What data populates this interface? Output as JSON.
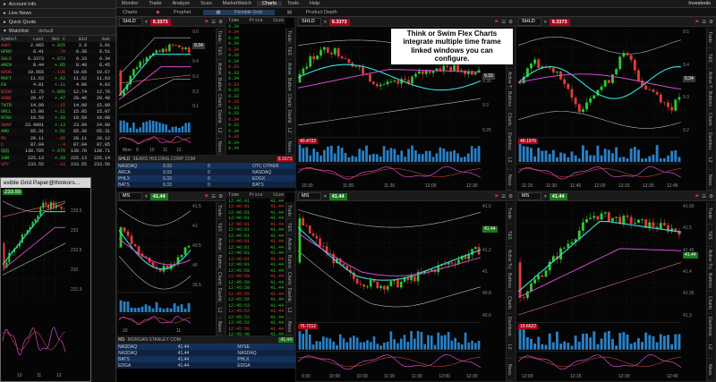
{
  "app": {
    "brand": "Investools"
  },
  "menu": [
    "Monitor",
    "Trade",
    "Analyze",
    "Scan",
    "MarketWatch",
    "Charts",
    "Tools",
    "Help"
  ],
  "subtabs": [
    "Charts",
    "Prophet",
    "Flexible Grid",
    "Product Depth"
  ],
  "left": {
    "sections": [
      "Account Info",
      "Live News",
      "Quick Quote"
    ],
    "watchlist_title": "Watchlist",
    "watchlist_name": "default",
    "columns": [
      "Symbol",
      "Last",
      "Net C",
      "Bid",
      "Ask"
    ],
    "rows": [
      {
        "sym": "AAPL",
        "last": "2.965",
        "chg": "+.025",
        "bid": "2.9",
        "ask": "3.01",
        "color": "#e04040"
      },
      {
        "sym": "GPRO",
        "last": "8.41",
        "chg": "-.79",
        "bid": "8.38",
        "ask": "8.51",
        "color": "#40d040"
      },
      {
        "sym": "SHLD",
        "last": "9.3373",
        "chg": "+.073",
        "bid": "9.33",
        "ask": "9.34",
        "color": "#40d040"
      },
      {
        "sym": "AMZN",
        "last": "8.44",
        "chg": "+.05",
        "bid": "8.40",
        "ask": "8.45",
        "color": "#40d040"
      },
      {
        "sym": "GOOG",
        "last": "10.665",
        "chg": "-.135",
        "bid": "10.66",
        "ask": "10.67",
        "color": "#e04040"
      },
      {
        "sym": "MSFT",
        "last": "11.63",
        "chg": "+.02",
        "bid": "11.62",
        "ask": "11.63",
        "color": "#40d040"
      },
      {
        "sym": "FB",
        "last": "4.01",
        "chg": "+.11",
        "bid": "4.00",
        "ask": "4.03",
        "color": "#40d040"
      },
      {
        "sym": "BIDU",
        "last": "12.75",
        "chg": "+.095",
        "bid": "12.74",
        "ask": "12.76",
        "color": "#e04040"
      },
      {
        "sym": "ADBE",
        "last": "20.47",
        "chg": "+.47",
        "bid": "20.46",
        "ask": "20.48",
        "color": "#e04040"
      },
      {
        "sym": "TWTR",
        "last": "14.99",
        "chg": "-.15",
        "bid": "14.99",
        "ask": "15.00",
        "color": "#40d040"
      },
      {
        "sym": "ORCL",
        "last": "15.06",
        "chg": "+.11",
        "bid": "15.05",
        "ask": "15.07",
        "color": "#40d040"
      },
      {
        "sym": "NTNX",
        "last": "19.59",
        "chg": "+.28",
        "bid": "19.59",
        "ask": "19.60",
        "color": "#40d040"
      },
      {
        "sym": "SNAP",
        "last": "23.9991",
        "chg": "+.13",
        "bid": "23.99",
        "ask": "24.00",
        "color": "#e04040"
      },
      {
        "sym": "AMD",
        "last": "65.31",
        "chg": "+.51",
        "bid": "65.30",
        "ask": "65.31",
        "color": "#40d040"
      },
      {
        "sym": "MS",
        "last": "28.11",
        "chg": "-.06",
        "bid": "28.11",
        "ask": "28.12",
        "color": "#e04040"
      },
      {
        "sym": "C",
        "last": "87.04",
        "chg": "-.4",
        "bid": "87.04",
        "ask": "87.05",
        "color": "#e04040"
      },
      {
        "sym": "QQQ",
        "last": "130.705",
        "chg": "+.075",
        "bid": "130.70",
        "ask": "130.71",
        "color": "#40d040"
      },
      {
        "sym": "IWM",
        "last": "225.13",
        "chg": "+.29",
        "bid": "225.13",
        "ask": "225.14",
        "color": "#40d040"
      },
      {
        "sym": "SPY",
        "last": "233.55",
        "chg": "-.33",
        "bid": "233.55",
        "ask": "233.56",
        "color": "#e04040"
      }
    ]
  },
  "annotation": "Think or Swim Flex Charts integrate multiple time frame linked windows you can configure.",
  "float_window_title": "exible Grid Paper@thinkors...",
  "float_window_price": "233.55",
  "float_window_axis": [
    "233.5",
    "233",
    "232.5",
    "232",
    "231.5"
  ],
  "float_window_x": [
    "10",
    "11",
    "12"
  ],
  "shld": {
    "symbol": "SHLD",
    "price": "9.3373",
    "depth_title": "SEARS HOLDING CORP COM",
    "depth_rows": [
      [
        "NASDAQ",
        "9.33",
        "0",
        "OTC OTHER"
      ],
      [
        "ARCA",
        "9.33",
        "0",
        "NASDAQ"
      ],
      [
        "PHLX",
        "9.33",
        "0",
        "EDGX"
      ],
      [
        "BATS",
        "9.33",
        "0",
        "BATS"
      ]
    ],
    "tas_cols": [
      "Time",
      "Price",
      "Size"
    ],
    "tas_rows": [
      "9.34",
      "9.34",
      "9.34",
      "9.34",
      "9.34",
      "9.33",
      "9.34",
      "9.33",
      "9.33",
      "9.34",
      "9.33",
      "9.33",
      "9.33",
      "9.33",
      "9.33",
      "9.33",
      "9.34",
      "9.33",
      "9.34",
      "9.33",
      "9.34",
      "9.34"
    ],
    "axis_a": [
      "9.6",
      "9.5",
      "9.4",
      "9.3",
      "9.2",
      "9.1"
    ],
    "axis_c": [
      "9.45",
      "9.4",
      "9.35",
      "9.3",
      "9.25"
    ],
    "axis_d": [
      "9.5",
      "9.4",
      "9.3",
      "9.2"
    ],
    "x_a": [
      "Mon",
      "9",
      "10",
      "11",
      "12"
    ],
    "x_c": [
      "10:30",
      "11:00",
      "11:30",
      "12:00",
      "12:30"
    ],
    "x_d": [
      "11:15",
      "11:30",
      "11:45",
      "12:00",
      "12:15",
      "12:30",
      "12:45"
    ],
    "badge_a": "9.34",
    "badge_c": "9.33",
    "badge_d": "9.34",
    "vol_c": "40.4722",
    "vol_d": "48.1976"
  },
  "ms": {
    "symbol": "MS",
    "price": "41.44",
    "depth_title": "MORGAN STANLEY COM",
    "depth_rows": [
      [
        "NASDAQ",
        "41.44",
        "NYSE"
      ],
      [
        "NASDAQ",
        "41.44",
        "NASDAQ"
      ],
      [
        "BATS",
        "41.44",
        "PHLX"
      ],
      [
        "EDGA",
        "41.44",
        "EDGA"
      ]
    ],
    "tas_rows": [
      "12:46:01",
      "12:46:01",
      "12:46:01",
      "12:46:01",
      "12:46:01",
      "12:46:01",
      "12:46:01",
      "12:46:01",
      "12:46:01",
      "12:46:01",
      "12:46:01",
      "12:46:01",
      "12:45:59",
      "12:45:59",
      "12:45:59",
      "12:45:58",
      "12:45:55",
      "12:45:55",
      "12:45:53",
      "12:45:52",
      "12:45:52",
      "12:45:52",
      "12:45:50",
      "12:45:48"
    ],
    "tas_price": "41.44",
    "axis_a": [
      "41.5",
      "41",
      "40.5",
      "40",
      "39.5"
    ],
    "axis_c": [
      "41.6",
      "41.4",
      "41.2",
      "41",
      "40.8",
      "40.6"
    ],
    "axis_d": [
      "41.55",
      "41.5",
      "41.45",
      "41.4",
      "41.35",
      "41.3"
    ],
    "x_a": [
      "10",
      "11"
    ],
    "x_c": [
      "9:30",
      "10:00",
      "10:30",
      "11:00",
      "11:30",
      "12:00",
      "12:30"
    ],
    "x_d": [
      "12:00",
      "12:15",
      "12:30",
      "12:45"
    ],
    "badge_c": "41.44",
    "badge_d": "41.44",
    "vol_c": "76.7212",
    "vol_d": "19.6622"
  },
  "vtabs": [
    "Trade",
    "T&S",
    "Active Trader",
    "Buttons",
    "Charts",
    "Dashboard",
    "L2",
    "News"
  ],
  "colors": {
    "bull": "#2ec92e",
    "bear": "#e23a3a",
    "accent": "#2a80c8",
    "sma_cyan": "#37e0e0",
    "sma_magenta": "#d24ad2"
  }
}
